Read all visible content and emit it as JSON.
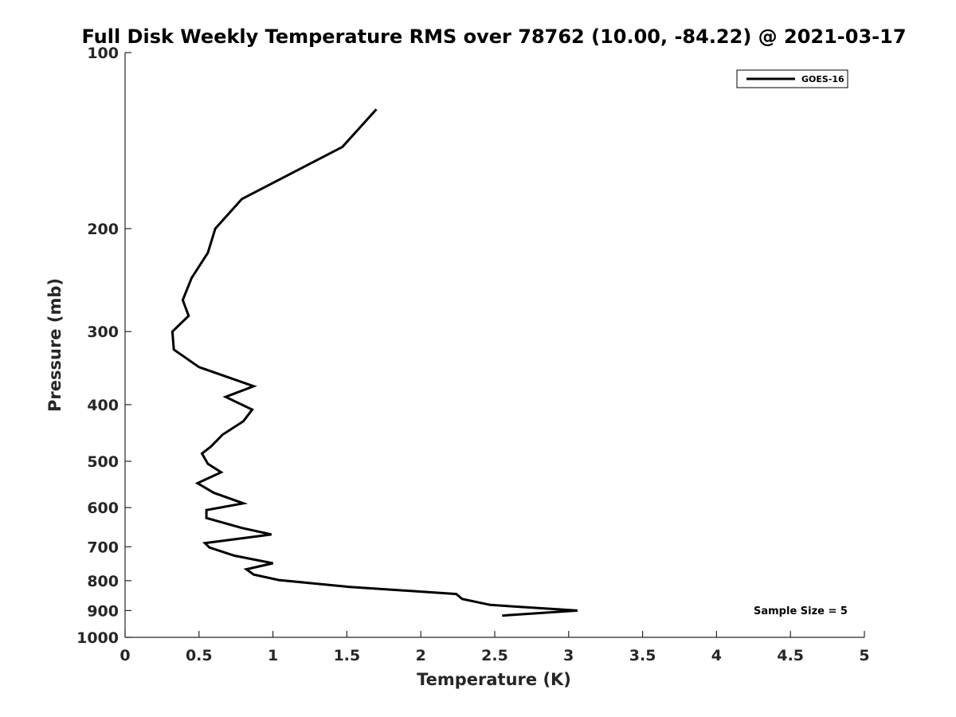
{
  "chart_data": {
    "type": "line",
    "title": "Full Disk Weekly Temperature RMS over 78762 (10.00, -84.22) @ 2021-03-17",
    "xlabel": "Temperature (K)",
    "ylabel": "Pressure (mb)",
    "xlim": [
      0,
      5
    ],
    "ylim": [
      100,
      1000
    ],
    "yscale": "log",
    "yreversed": true,
    "x_ticks": [
      0,
      0.5,
      1,
      1.5,
      2,
      2.5,
      3,
      3.5,
      4,
      4.5,
      5
    ],
    "x_tick_labels": [
      "0",
      "0.5",
      "1",
      "1.5",
      "2",
      "2.5",
      "3",
      "3.5",
      "4",
      "4.5",
      "5"
    ],
    "y_ticks": [
      100,
      200,
      300,
      400,
      500,
      600,
      700,
      800,
      900,
      1000
    ],
    "y_tick_labels": [
      "100",
      "200",
      "300",
      "400",
      "500",
      "600",
      "700",
      "800",
      "900",
      "1000"
    ],
    "grid": false,
    "legend_position": "top-right",
    "series": [
      {
        "name": "GOES-16",
        "color": "#000000",
        "points": [
          {
            "x": 1.7,
            "p": 125
          },
          {
            "x": 1.47,
            "p": 145
          },
          {
            "x": 0.79,
            "p": 178
          },
          {
            "x": 0.61,
            "p": 200
          },
          {
            "x": 0.56,
            "p": 220
          },
          {
            "x": 0.45,
            "p": 243
          },
          {
            "x": 0.39,
            "p": 265
          },
          {
            "x": 0.43,
            "p": 282
          },
          {
            "x": 0.32,
            "p": 300
          },
          {
            "x": 0.33,
            "p": 322
          },
          {
            "x": 0.5,
            "p": 345
          },
          {
            "x": 0.87,
            "p": 372
          },
          {
            "x": 0.68,
            "p": 388
          },
          {
            "x": 0.86,
            "p": 408
          },
          {
            "x": 0.8,
            "p": 427
          },
          {
            "x": 0.66,
            "p": 450
          },
          {
            "x": 0.58,
            "p": 472
          },
          {
            "x": 0.52,
            "p": 485
          },
          {
            "x": 0.56,
            "p": 505
          },
          {
            "x": 0.65,
            "p": 522
          },
          {
            "x": 0.49,
            "p": 545
          },
          {
            "x": 0.6,
            "p": 566
          },
          {
            "x": 0.8,
            "p": 590
          },
          {
            "x": 0.55,
            "p": 606
          },
          {
            "x": 0.55,
            "p": 625
          },
          {
            "x": 0.79,
            "p": 650
          },
          {
            "x": 0.99,
            "p": 667
          },
          {
            "x": 0.54,
            "p": 690
          },
          {
            "x": 0.57,
            "p": 702
          },
          {
            "x": 0.74,
            "p": 725
          },
          {
            "x": 1.0,
            "p": 747
          },
          {
            "x": 0.82,
            "p": 765
          },
          {
            "x": 0.87,
            "p": 781
          },
          {
            "x": 1.04,
            "p": 798
          },
          {
            "x": 1.52,
            "p": 820
          },
          {
            "x": 2.24,
            "p": 843
          },
          {
            "x": 2.28,
            "p": 860
          },
          {
            "x": 2.47,
            "p": 880
          },
          {
            "x": 3.06,
            "p": 900
          },
          {
            "x": 2.55,
            "p": 918
          }
        ]
      }
    ],
    "annotation": "Sample Size = 5"
  }
}
